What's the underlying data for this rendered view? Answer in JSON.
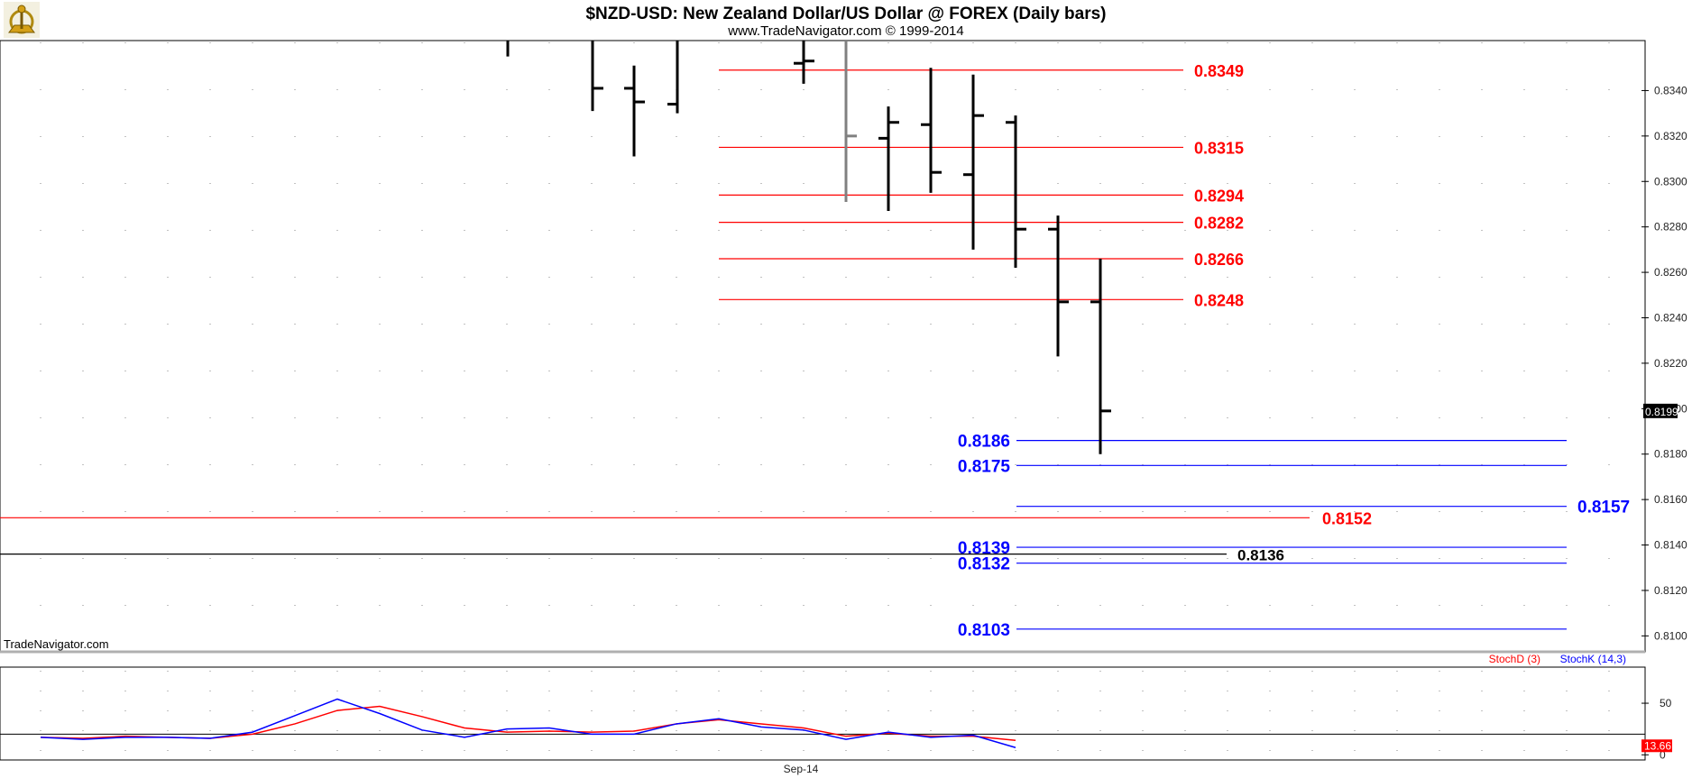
{
  "header": {
    "title": "$NZD-USD:  New Zealand Dollar/US Dollar @ FOREX  (Daily bars)",
    "subtitle": "www.TradeNavigator.com © 1999-2014"
  },
  "watermark": "TradeNavigator.com",
  "logo_icon": "trade-navigator-logo-icon",
  "colors": {
    "background": "#ffffff",
    "price_pane_border": "#000000",
    "bar_color": "#000000",
    "bar_highlight": "#808080",
    "resistance": "#ff0000",
    "support": "#0000ff",
    "stoch_d": "#ff0000",
    "stoch_k": "#0000ff"
  },
  "chart_data": [
    {
      "type": "ohlc",
      "title": "$NZD-USD:  New Zealand Dollar/US Dollar @ FOREX  (Daily bars)",
      "ylim": [
        0.8093,
        0.8362
      ],
      "y_ticks": [
        "0.8340",
        "0.8320",
        "0.8300",
        "0.8280",
        "0.8260",
        "0.8240",
        "0.8220",
        "0.8200",
        "0.8180",
        "0.8160",
        "0.8140",
        "0.8120",
        "0.8100"
      ],
      "x_labels": [
        "Sep-14"
      ],
      "last_price_tag": "0.8199",
      "bars": [
        {
          "o": null,
          "h": 0.8362,
          "l": 0.8355,
          "c": null,
          "color": "black"
        },
        {
          "o": null,
          "h": 0.8362,
          "l": 0.8331,
          "c": 0.8341,
          "color": "black"
        },
        {
          "o": 0.8341,
          "h": 0.8351,
          "l": 0.8311,
          "c": 0.8335,
          "color": "black"
        },
        {
          "o": 0.8334,
          "h": 0.8362,
          "l": 0.833,
          "c": null,
          "color": "black"
        },
        {
          "o": 0.8352,
          "h": 0.8362,
          "l": 0.8343,
          "c": 0.8353,
          "color": "black"
        },
        {
          "o": null,
          "h": 0.8362,
          "l": 0.8291,
          "c": 0.832,
          "color": "gray"
        },
        {
          "o": 0.8319,
          "h": 0.8333,
          "l": 0.8287,
          "c": 0.8326,
          "color": "black"
        },
        {
          "o": 0.8325,
          "h": 0.835,
          "l": 0.8295,
          "c": 0.8304,
          "color": "black"
        },
        {
          "o": 0.8303,
          "h": 0.8347,
          "l": 0.827,
          "c": 0.8329,
          "color": "black"
        },
        {
          "o": 0.8326,
          "h": 0.8329,
          "l": 0.8262,
          "c": 0.8279,
          "color": "black"
        },
        {
          "o": 0.8279,
          "h": 0.8285,
          "l": 0.8223,
          "c": 0.8247,
          "color": "black"
        },
        {
          "o": 0.8247,
          "h": 0.8266,
          "l": 0.818,
          "c": 0.8199,
          "color": "black"
        }
      ],
      "levels": [
        {
          "value": 0.8349,
          "label": "0.8349",
          "color": "red"
        },
        {
          "value": 0.8315,
          "label": "0.8315",
          "color": "red"
        },
        {
          "value": 0.8294,
          "label": "0.8294",
          "color": "red"
        },
        {
          "value": 0.8282,
          "label": "0.8282",
          "color": "red"
        },
        {
          "value": 0.8266,
          "label": "0.8266",
          "color": "red"
        },
        {
          "value": 0.8248,
          "label": "0.8248",
          "color": "red"
        },
        {
          "value": 0.8186,
          "label": "0.8186",
          "color": "blue"
        },
        {
          "value": 0.8175,
          "label": "0.8175",
          "color": "blue"
        },
        {
          "value": 0.8157,
          "label": "0.8157",
          "color": "blue"
        },
        {
          "value": 0.8152,
          "label": "0.8152",
          "color": "red"
        },
        {
          "value": 0.8139,
          "label": "0.8139",
          "color": "blue"
        },
        {
          "value": 0.8136,
          "label": "0.8136",
          "color": "black"
        },
        {
          "value": 0.8132,
          "label": "0.8132",
          "color": "blue"
        },
        {
          "value": 0.8103,
          "label": "0.8103",
          "color": "blue"
        }
      ]
    },
    {
      "type": "line",
      "ylim": [
        -5,
        85
      ],
      "y_ticks": [
        "50",
        "0"
      ],
      "reference_line": 20,
      "series": [
        {
          "name": "StochD (3)",
          "color": "#ff0000",
          "values": [
            17,
            16,
            18,
            17,
            16,
            20,
            30,
            43,
            47,
            37,
            26,
            22,
            23,
            22,
            23,
            30,
            34,
            30,
            26,
            18,
            21,
            18,
            18,
            14
          ]
        },
        {
          "name": "StochK (14,3)",
          "color": "#0000ff",
          "values": [
            17,
            15,
            17,
            17,
            16,
            22,
            38,
            54,
            40,
            24,
            17,
            25,
            26,
            20,
            20,
            30,
            35,
            27,
            24,
            15,
            22,
            17,
            19,
            7
          ]
        }
      ],
      "value_tags": [
        "13.66"
      ]
    }
  ]
}
